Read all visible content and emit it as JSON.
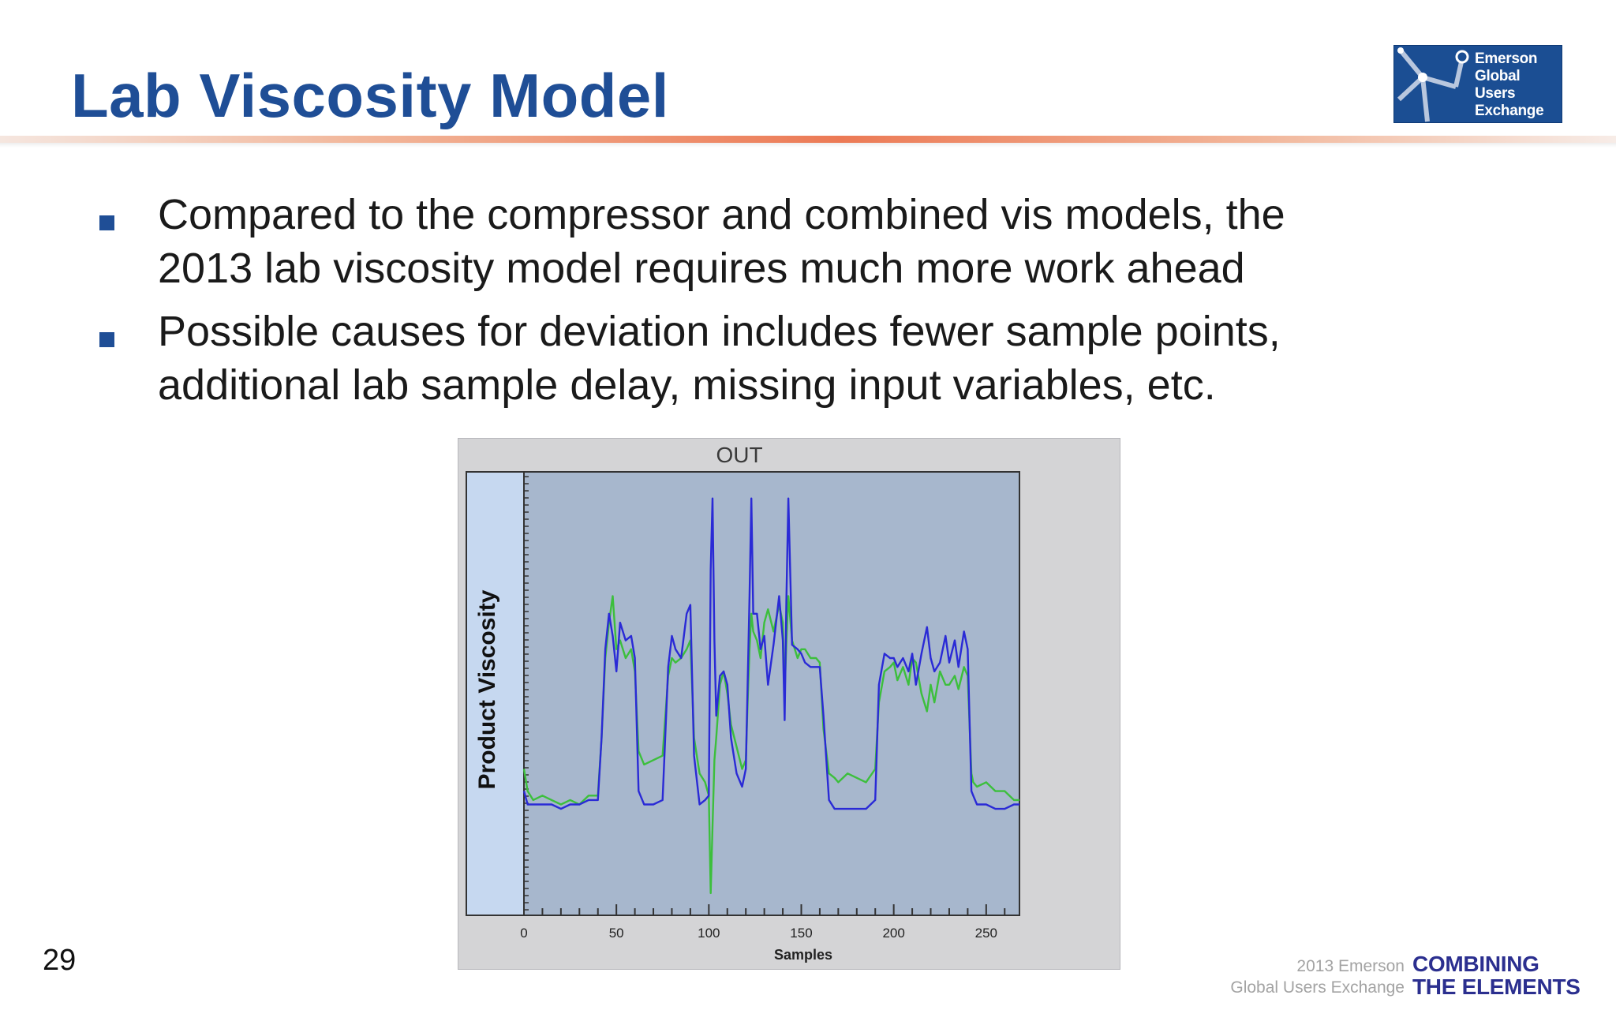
{
  "slide": {
    "title": "Lab Viscosity Model",
    "bullets": [
      "Compared to the compressor and combined vis models, the 2013 lab viscosity model requires much more work ahead",
      "Possible causes for deviation includes fewer sample points, additional lab sample delay, missing input variables, etc."
    ],
    "page_number": "29"
  },
  "logo": {
    "lines": [
      "Emerson",
      "Global",
      "Users",
      "Exchange"
    ],
    "color": "#1b4e93"
  },
  "footer": {
    "left_lines": [
      "2013 Emerson",
      "Global Users Exchange"
    ],
    "right_lines": [
      "COMBINING",
      "THE ELEMENTS"
    ]
  },
  "chart_data": {
    "type": "line",
    "title": "OUT",
    "xlabel": "Samples",
    "ylabel": "Product Viscosity",
    "xlim": [
      0,
      268
    ],
    "ylim": [
      0,
      100
    ],
    "xticks": [
      0,
      50,
      100,
      150,
      200,
      250
    ],
    "grid": false,
    "legend": "none",
    "series": [
      {
        "color": "#2a2ad6",
        "x": [
          0,
          2,
          5,
          10,
          15,
          20,
          25,
          30,
          35,
          40,
          42,
          44,
          46,
          48,
          50,
          52,
          55,
          58,
          60,
          62,
          65,
          70,
          75,
          78,
          80,
          82,
          85,
          88,
          90,
          92,
          95,
          98,
          100,
          101,
          102,
          103,
          104,
          106,
          108,
          110,
          112,
          115,
          118,
          120,
          121,
          122,
          123,
          124,
          126,
          128,
          130,
          132,
          135,
          138,
          140,
          141,
          142,
          143,
          145,
          148,
          150,
          152,
          155,
          158,
          160,
          162,
          165,
          168,
          170,
          175,
          180,
          185,
          190,
          192,
          195,
          198,
          200,
          202,
          205,
          208,
          210,
          212,
          215,
          218,
          220,
          222,
          225,
          228,
          230,
          233,
          235,
          238,
          240,
          242,
          243,
          245,
          250,
          255,
          260,
          265,
          268
        ],
        "y": [
          28,
          25,
          25,
          25,
          25,
          24,
          25,
          25,
          26,
          26,
          40,
          60,
          68,
          63,
          55,
          66,
          62,
          63,
          58,
          28,
          25,
          25,
          26,
          56,
          63,
          60,
          58,
          68,
          70,
          36,
          25,
          26,
          27,
          78,
          94,
          62,
          45,
          54,
          55,
          52,
          40,
          32,
          29,
          33,
          52,
          72,
          94,
          68,
          68,
          60,
          63,
          52,
          61,
          72,
          62,
          44,
          72,
          94,
          61,
          60,
          59,
          57,
          56,
          56,
          56,
          45,
          26,
          24,
          24,
          24,
          24,
          24,
          26,
          52,
          59,
          58,
          58,
          56,
          58,
          55,
          59,
          52,
          59,
          65,
          58,
          55,
          57,
          63,
          57,
          62,
          56,
          64,
          60,
          28,
          27,
          25,
          25,
          24,
          24,
          25,
          25
        ]
      },
      {
        "color": "#3cbf3c",
        "x": [
          0,
          2,
          5,
          10,
          15,
          20,
          25,
          30,
          35,
          40,
          42,
          44,
          46,
          48,
          50,
          52,
          55,
          58,
          60,
          62,
          65,
          70,
          75,
          78,
          80,
          82,
          85,
          88,
          90,
          92,
          95,
          98,
          100,
          101,
          102,
          103,
          104,
          106,
          108,
          110,
          112,
          115,
          118,
          120,
          121,
          122,
          123,
          124,
          126,
          128,
          130,
          132,
          135,
          138,
          140,
          141,
          142,
          143,
          145,
          148,
          150,
          152,
          155,
          158,
          160,
          162,
          165,
          168,
          170,
          175,
          180,
          185,
          190,
          192,
          195,
          198,
          200,
          202,
          205,
          208,
          210,
          212,
          215,
          218,
          220,
          222,
          225,
          228,
          230,
          233,
          235,
          238,
          240,
          242,
          243,
          245,
          250,
          255,
          260,
          265,
          268
        ],
        "y": [
          33,
          28,
          26,
          27,
          26,
          25,
          26,
          25,
          27,
          27,
          40,
          58,
          66,
          72,
          60,
          62,
          58,
          60,
          55,
          37,
          34,
          35,
          36,
          54,
          58,
          57,
          58,
          60,
          62,
          40,
          32,
          30,
          27,
          5,
          20,
          35,
          40,
          52,
          55,
          50,
          43,
          38,
          33,
          35,
          48,
          60,
          68,
          64,
          62,
          58,
          66,
          69,
          64,
          70,
          66,
          50,
          62,
          72,
          62,
          58,
          60,
          60,
          58,
          58,
          57,
          42,
          32,
          31,
          30,
          32,
          31,
          30,
          33,
          48,
          55,
          56,
          57,
          53,
          56,
          52,
          58,
          57,
          50,
          46,
          52,
          48,
          55,
          52,
          52,
          54,
          51,
          56,
          54,
          32,
          30,
          29,
          30,
          28,
          28,
          26,
          26
        ]
      }
    ]
  }
}
